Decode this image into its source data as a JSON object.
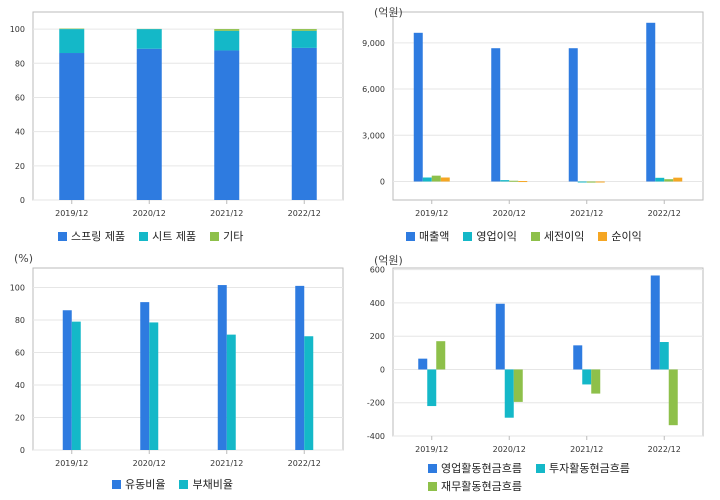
{
  "chart_data": [
    {
      "type": "bar",
      "stacked": true,
      "unit": "",
      "categories": [
        "2019/12",
        "2020/12",
        "2021/12",
        "2022/12"
      ],
      "series": [
        {
          "name": "스프링 제품",
          "color": "#2e7be0",
          "values": [
            86,
            88.5,
            87.5,
            89
          ]
        },
        {
          "name": "시트 제품",
          "color": "#14b8c8",
          "values": [
            14,
            11.5,
            11.5,
            10
          ]
        },
        {
          "name": "기타",
          "color": "#8ec04a",
          "values": [
            0.3,
            0.1,
            1,
            1
          ]
        }
      ],
      "ylim": [
        0,
        110
      ],
      "yticks": [
        0,
        20,
        40,
        60,
        80,
        100
      ],
      "grid": true,
      "legend_position": "bottom"
    },
    {
      "type": "bar",
      "unit": "(억원)",
      "categories": [
        "2019/12",
        "2020/12",
        "2021/12",
        "2022/12"
      ],
      "series": [
        {
          "name": "매출액",
          "color": "#2e7be0",
          "values": [
            9650,
            8650,
            8650,
            10300
          ]
        },
        {
          "name": "영업이익",
          "color": "#14b8c8",
          "values": [
            260,
            90,
            -40,
            240
          ]
        },
        {
          "name": "세전이익",
          "color": "#8ec04a",
          "values": [
            380,
            50,
            -70,
            150
          ]
        },
        {
          "name": "순이익",
          "color": "#f5a623",
          "values": [
            260,
            30,
            -50,
            250
          ]
        }
      ],
      "ylim": [
        -1200,
        11000
      ],
      "yticks": [
        0,
        3000,
        6000,
        9000
      ],
      "yticklabels": [
        "0",
        "3,000",
        "6,000",
        "9,000"
      ],
      "grid": true,
      "legend_position": "bottom"
    },
    {
      "type": "bar",
      "unit": "(%)",
      "categories": [
        "2019/12",
        "2020/12",
        "2021/12",
        "2022/12"
      ],
      "series": [
        {
          "name": "유동비율",
          "color": "#2e7be0",
          "values": [
            86,
            91,
            101.5,
            101
          ]
        },
        {
          "name": "부채비율",
          "color": "#14b8c8",
          "values": [
            79,
            78.5,
            71,
            70
          ]
        }
      ],
      "ylim": [
        0,
        112
      ],
      "yticks": [
        0,
        20,
        40,
        60,
        80,
        100
      ],
      "grid": true,
      "legend_position": "bottom"
    },
    {
      "type": "bar",
      "unit": "(억원)",
      "categories": [
        "2019/12",
        "2020/12",
        "2021/12",
        "2022/12"
      ],
      "series": [
        {
          "name": "영업활동현금흐름",
          "color": "#2e7be0",
          "values": [
            65,
            395,
            145,
            565
          ]
        },
        {
          "name": "투자활동현금흐름",
          "color": "#14b8c8",
          "values": [
            -220,
            -290,
            -90,
            165
          ]
        },
        {
          "name": "재무활동현금흐름",
          "color": "#8ec04a",
          "values": [
            170,
            -195,
            -145,
            -335
          ]
        }
      ],
      "ylim": [
        -400,
        610
      ],
      "yticks": [
        -400,
        -200,
        0,
        200,
        400,
        600
      ],
      "grid": true,
      "legend_position": "bottom"
    }
  ]
}
